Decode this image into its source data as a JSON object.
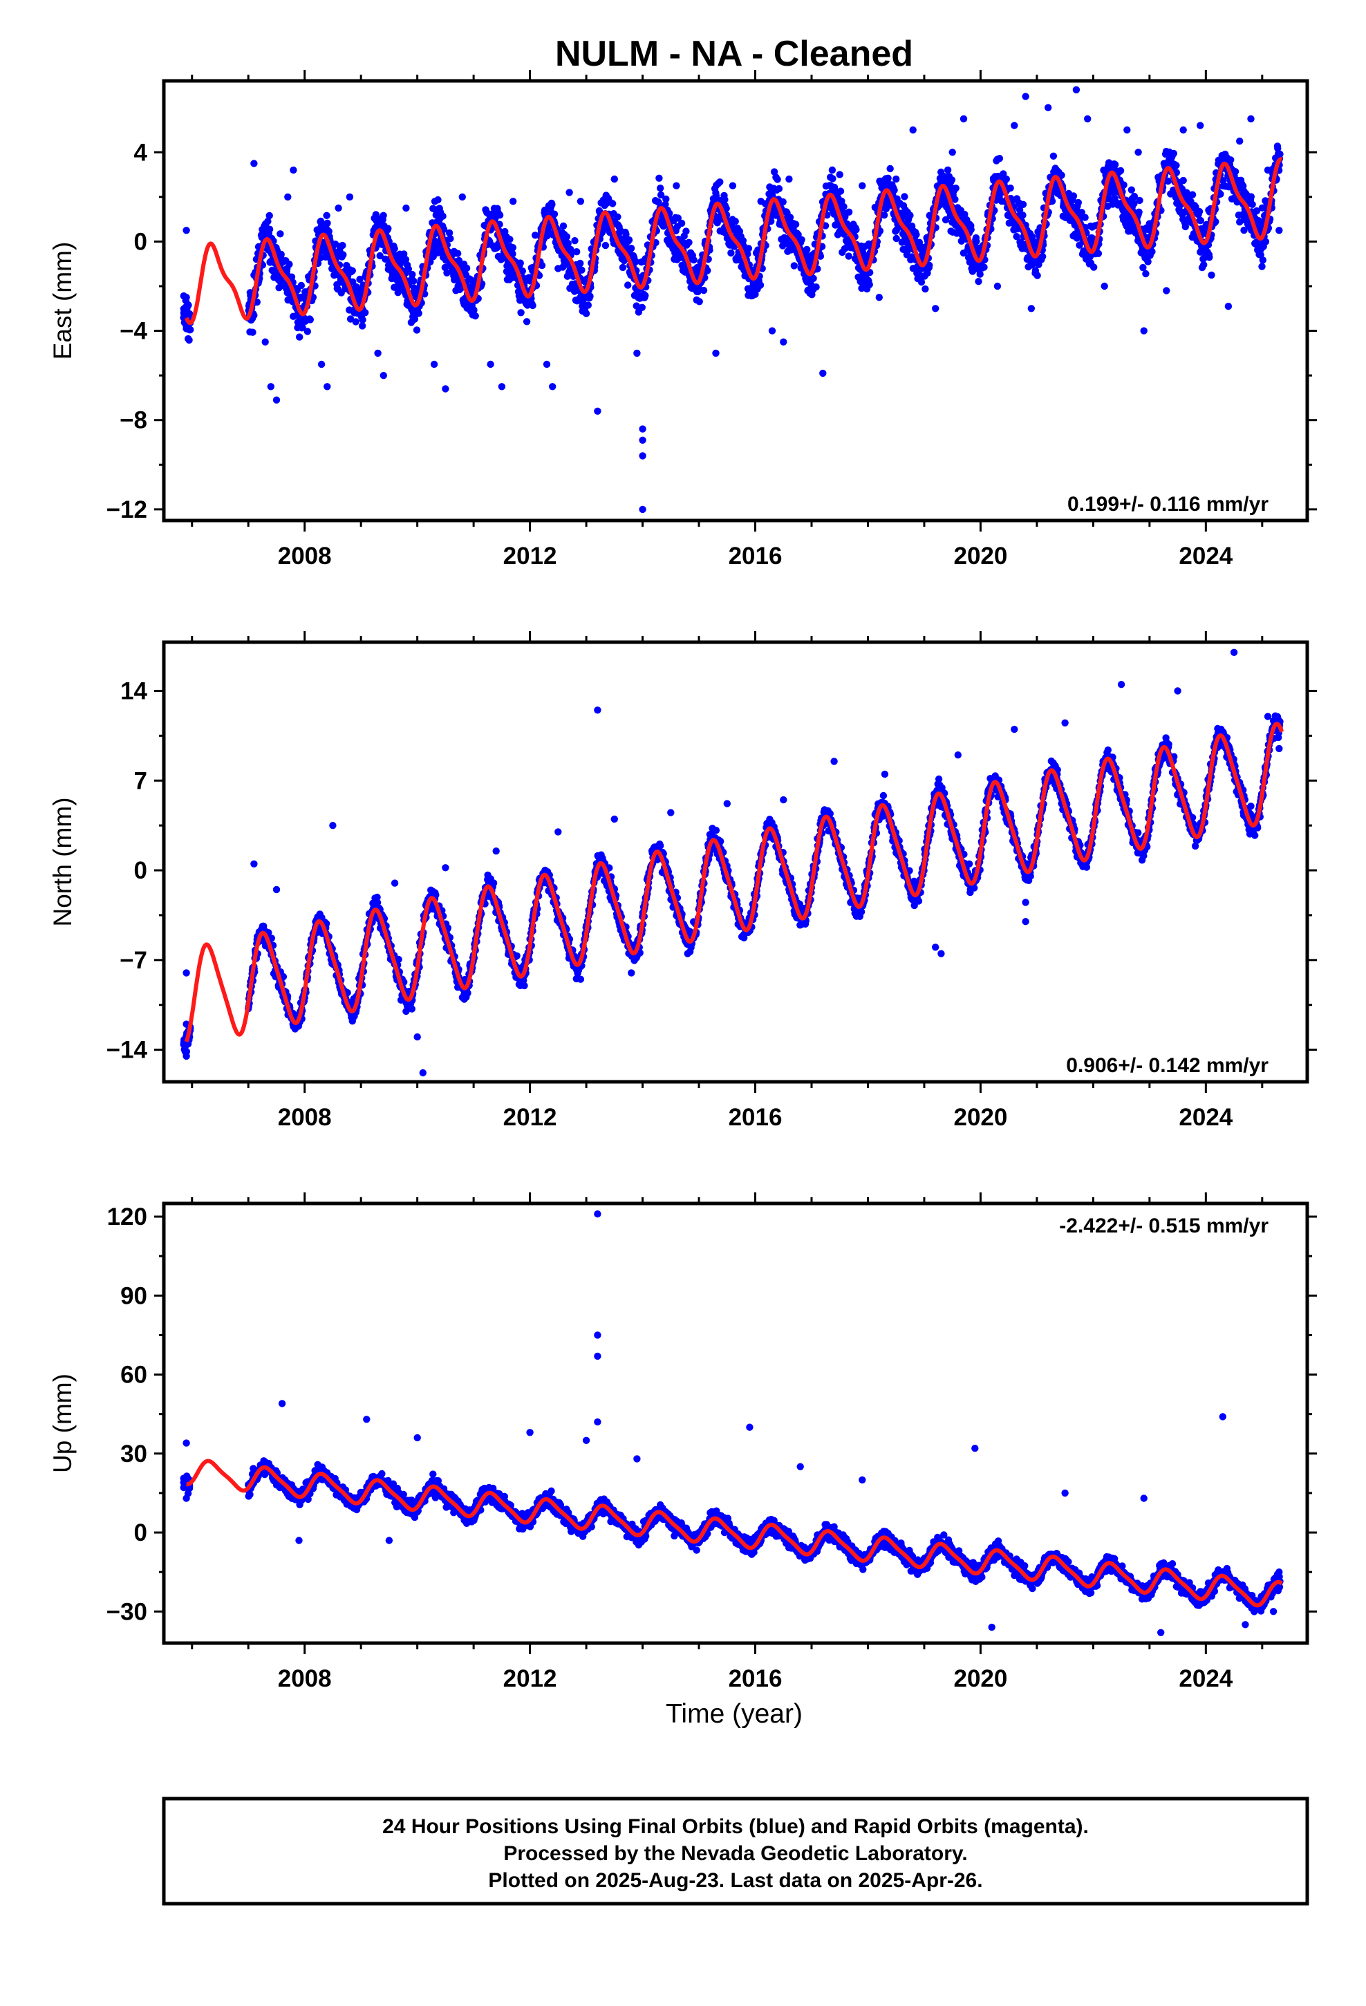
{
  "title": "NULM  - NA - Cleaned",
  "colors": {
    "final_orbits": "#0000ff",
    "model_fit": "#ff1a1a",
    "frame": "#000000"
  },
  "footer": {
    "line1": "24 Hour Positions Using Final Orbits (blue) and Rapid Orbits (magenta).",
    "line2": "Processed by the Nevada Geodetic Laboratory.",
    "line3": "Plotted on 2025-Aug-23. Last data on 2025-Apr-26."
  },
  "chart_data": [
    {
      "type": "scatter",
      "ylabel": "East (mm)",
      "xlabel": "",
      "rate_text": "0.199+/- 0.116 mm/yr",
      "rate_position": "bottom-right",
      "xlim": [
        2005.5,
        2025.8
      ],
      "ylim": [
        -12.5,
        7.2
      ],
      "yticks": [
        -12,
        -8,
        -4,
        0,
        4
      ],
      "xticks": [
        2008,
        2012,
        2016,
        2020,
        2024
      ],
      "grid": false,
      "series": [
        {
          "kind": "scatter",
          "values_description_only": false,
          "points": [
            [
              2005.9,
              0.5
            ],
            [
              2005.9,
              -2.5
            ],
            [
              2005.9,
              -3.6
            ],
            [
              2007.1,
              3.5
            ],
            [
              2007.1,
              -1.5
            ],
            [
              2007.3,
              -4.5
            ],
            [
              2007.4,
              -6.5
            ],
            [
              2007.5,
              -7.1
            ],
            [
              2007.7,
              2.0
            ],
            [
              2007.8,
              3.2
            ],
            [
              2008.1,
              -3.5
            ],
            [
              2008.3,
              -5.5
            ],
            [
              2008.4,
              -6.5
            ],
            [
              2008.6,
              1.5
            ],
            [
              2008.8,
              2.0
            ],
            [
              2009.3,
              -5.0
            ],
            [
              2009.4,
              -6.0
            ],
            [
              2009.8,
              1.5
            ],
            [
              2010.3,
              -5.5
            ],
            [
              2010.5,
              -6.6
            ],
            [
              2010.8,
              2.0
            ],
            [
              2011.3,
              -5.5
            ],
            [
              2011.5,
              -6.5
            ],
            [
              2011.7,
              1.8
            ],
            [
              2012.3,
              -5.5
            ],
            [
              2012.4,
              -6.5
            ],
            [
              2012.7,
              2.2
            ],
            [
              2012.9,
              1.8
            ],
            [
              2013.2,
              -7.6
            ],
            [
              2013.5,
              2.8
            ],
            [
              2013.9,
              -5.0
            ],
            [
              2014.0,
              -8.4
            ],
            [
              2014.0,
              -8.9
            ],
            [
              2014.0,
              -9.6
            ],
            [
              2014.0,
              -12.0
            ],
            [
              2014.6,
              2.5
            ],
            [
              2015.3,
              -5.0
            ],
            [
              2015.6,
              2.5
            ],
            [
              2016.1,
              1.8
            ],
            [
              2016.3,
              -4.0
            ],
            [
              2016.5,
              -4.5
            ],
            [
              2016.6,
              2.8
            ],
            [
              2017.2,
              -5.9
            ],
            [
              2017.5,
              3.0
            ],
            [
              2017.9,
              2.5
            ],
            [
              2018.2,
              -2.5
            ],
            [
              2018.5,
              2.8
            ],
            [
              2018.8,
              5.0
            ],
            [
              2019.2,
              -3.0
            ],
            [
              2019.5,
              4.0
            ],
            [
              2019.7,
              5.5
            ],
            [
              2020.3,
              -2.0
            ],
            [
              2020.6,
              5.2
            ],
            [
              2020.8,
              6.5
            ],
            [
              2020.9,
              -3.0
            ],
            [
              2021.2,
              6.0
            ],
            [
              2021.7,
              6.8
            ],
            [
              2021.9,
              5.5
            ],
            [
              2022.2,
              -2.0
            ],
            [
              2022.6,
              5.0
            ],
            [
              2022.8,
              4.0
            ],
            [
              2022.9,
              -4.0
            ],
            [
              2023.3,
              -2.2
            ],
            [
              2023.6,
              5.0
            ],
            [
              2023.9,
              5.2
            ],
            [
              2024.1,
              -1.5
            ],
            [
              2024.4,
              -2.9
            ],
            [
              2024.6,
              4.5
            ],
            [
              2024.8,
              5.5
            ],
            [
              2025.1,
              3.2
            ],
            [
              2025.3,
              0.5
            ]
          ]
        }
      ]
    },
    {
      "type": "scatter",
      "ylabel": "North (mm)",
      "xlabel": "",
      "rate_text": "0.906+/- 0.142 mm/yr",
      "rate_position": "bottom-right",
      "xlim": [
        2005.5,
        2025.8
      ],
      "ylim": [
        -16.5,
        17.8
      ],
      "yticks": [
        -14,
        -7,
        0,
        7,
        14
      ],
      "xticks": [
        2008,
        2012,
        2016,
        2020,
        2024
      ],
      "grid": false,
      "series": [
        {
          "kind": "scatter",
          "points": [
            [
              2005.9,
              -8.0
            ],
            [
              2005.9,
              -12.0
            ],
            [
              2005.9,
              -14.5
            ],
            [
              2007.1,
              0.5
            ],
            [
              2007.5,
              -1.5
            ],
            [
              2007.9,
              -11.5
            ],
            [
              2008.5,
              3.5
            ],
            [
              2008.9,
              -10.5
            ],
            [
              2009.6,
              -1.0
            ],
            [
              2009.8,
              -11.0
            ],
            [
              2010.0,
              -13.0
            ],
            [
              2010.1,
              -15.8
            ],
            [
              2010.5,
              0.2
            ],
            [
              2011.4,
              1.5
            ],
            [
              2011.9,
              -9.0
            ],
            [
              2012.5,
              3.0
            ],
            [
              2012.9,
              -8.5
            ],
            [
              2013.2,
              12.5
            ],
            [
              2013.5,
              4.0
            ],
            [
              2013.8,
              -8.0
            ],
            [
              2014.5,
              4.5
            ],
            [
              2014.8,
              -6.5
            ],
            [
              2015.5,
              5.2
            ],
            [
              2015.8,
              -5.0
            ],
            [
              2016.5,
              5.5
            ],
            [
              2016.8,
              -3.5
            ],
            [
              2017.4,
              8.5
            ],
            [
              2017.8,
              -2.5
            ],
            [
              2018.3,
              7.5
            ],
            [
              2018.8,
              -1.0
            ],
            [
              2019.2,
              -6.0
            ],
            [
              2019.3,
              -6.5
            ],
            [
              2019.6,
              9.0
            ],
            [
              2019.8,
              0.5
            ],
            [
              2020.6,
              11.0
            ],
            [
              2020.8,
              -2.5
            ],
            [
              2020.8,
              -4.0
            ],
            [
              2021.5,
              11.5
            ],
            [
              2021.8,
              1.0
            ],
            [
              2022.5,
              14.5
            ],
            [
              2022.8,
              2.0
            ],
            [
              2023.5,
              14.0
            ],
            [
              2023.8,
              3.0
            ],
            [
              2024.5,
              17.0
            ],
            [
              2024.8,
              5.0
            ],
            [
              2025.1,
              12.0
            ],
            [
              2025.3,
              9.5
            ]
          ]
        }
      ]
    },
    {
      "type": "scatter",
      "ylabel": "Up (mm)",
      "xlabel": "Time (year)",
      "rate_text": "-2.422+/- 0.515 mm/yr",
      "rate_position": "top-right",
      "xlim": [
        2005.5,
        2025.8
      ],
      "ylim": [
        -42,
        125
      ],
      "yticks": [
        -30,
        0,
        30,
        60,
        90,
        120
      ],
      "xticks": [
        2008,
        2012,
        2016,
        2020,
        2024
      ],
      "grid": false,
      "series": [
        {
          "kind": "scatter",
          "points": [
            [
              2005.9,
              34
            ],
            [
              2005.9,
              13
            ],
            [
              2007.6,
              49
            ],
            [
              2007.9,
              -3
            ],
            [
              2009.1,
              43
            ],
            [
              2009.5,
              -3
            ],
            [
              2010.0,
              36
            ],
            [
              2012.0,
              38
            ],
            [
              2013.0,
              35
            ],
            [
              2013.2,
              121
            ],
            [
              2013.2,
              75
            ],
            [
              2013.2,
              67
            ],
            [
              2013.2,
              42
            ],
            [
              2013.9,
              28
            ],
            [
              2015.9,
              40
            ],
            [
              2016.8,
              25
            ],
            [
              2017.9,
              20
            ],
            [
              2019.9,
              32
            ],
            [
              2020.2,
              -36
            ],
            [
              2021.5,
              15
            ],
            [
              2022.9,
              13
            ],
            [
              2023.2,
              -38
            ],
            [
              2024.3,
              44
            ],
            [
              2024.7,
              -35
            ],
            [
              2025.2,
              -30
            ],
            [
              2025.3,
              -15
            ]
          ]
        }
      ]
    }
  ]
}
